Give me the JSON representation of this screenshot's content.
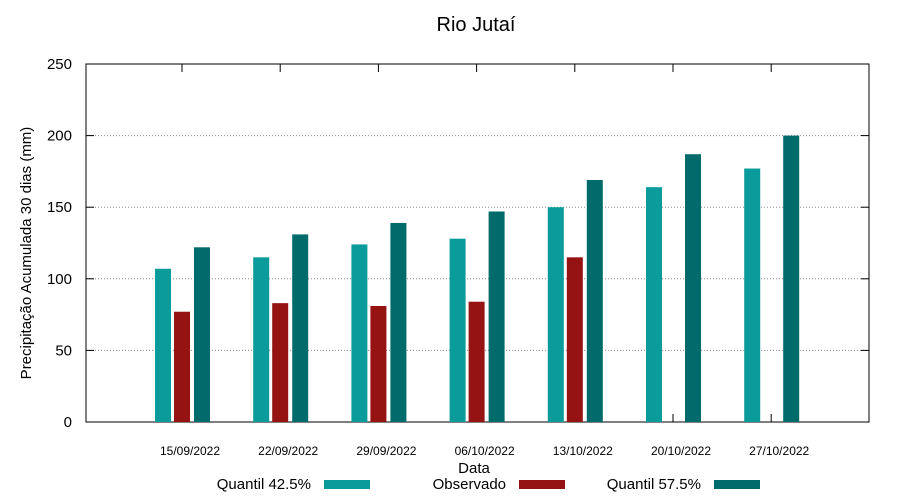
{
  "chart_data": {
    "type": "bar",
    "title": "Rio Jutaí",
    "xlabel": "Data",
    "ylabel": "Precipitação Acumulada 30 dias (mm)",
    "ylim": [
      0,
      250
    ],
    "yticks": [
      0,
      50,
      100,
      150,
      200,
      250
    ],
    "grid": true,
    "legend_position": "bottom",
    "categories": [
      "15/09/2022",
      "22/09/2022",
      "29/09/2022",
      "06/10/2022",
      "13/10/2022",
      "20/10/2022",
      "27/10/2022"
    ],
    "series": [
      {
        "name": "Quantil 42.5%",
        "color": "#0b9b9b",
        "values": [
          107,
          115,
          124,
          128,
          150,
          164,
          177
        ]
      },
      {
        "name": "Observado",
        "color": "#961313",
        "values": [
          77,
          83,
          81,
          84,
          115,
          null,
          null
        ]
      },
      {
        "name": "Quantil 57.5%",
        "color": "#016b6b",
        "values": [
          122,
          131,
          139,
          147,
          169,
          187,
          200
        ]
      }
    ]
  }
}
